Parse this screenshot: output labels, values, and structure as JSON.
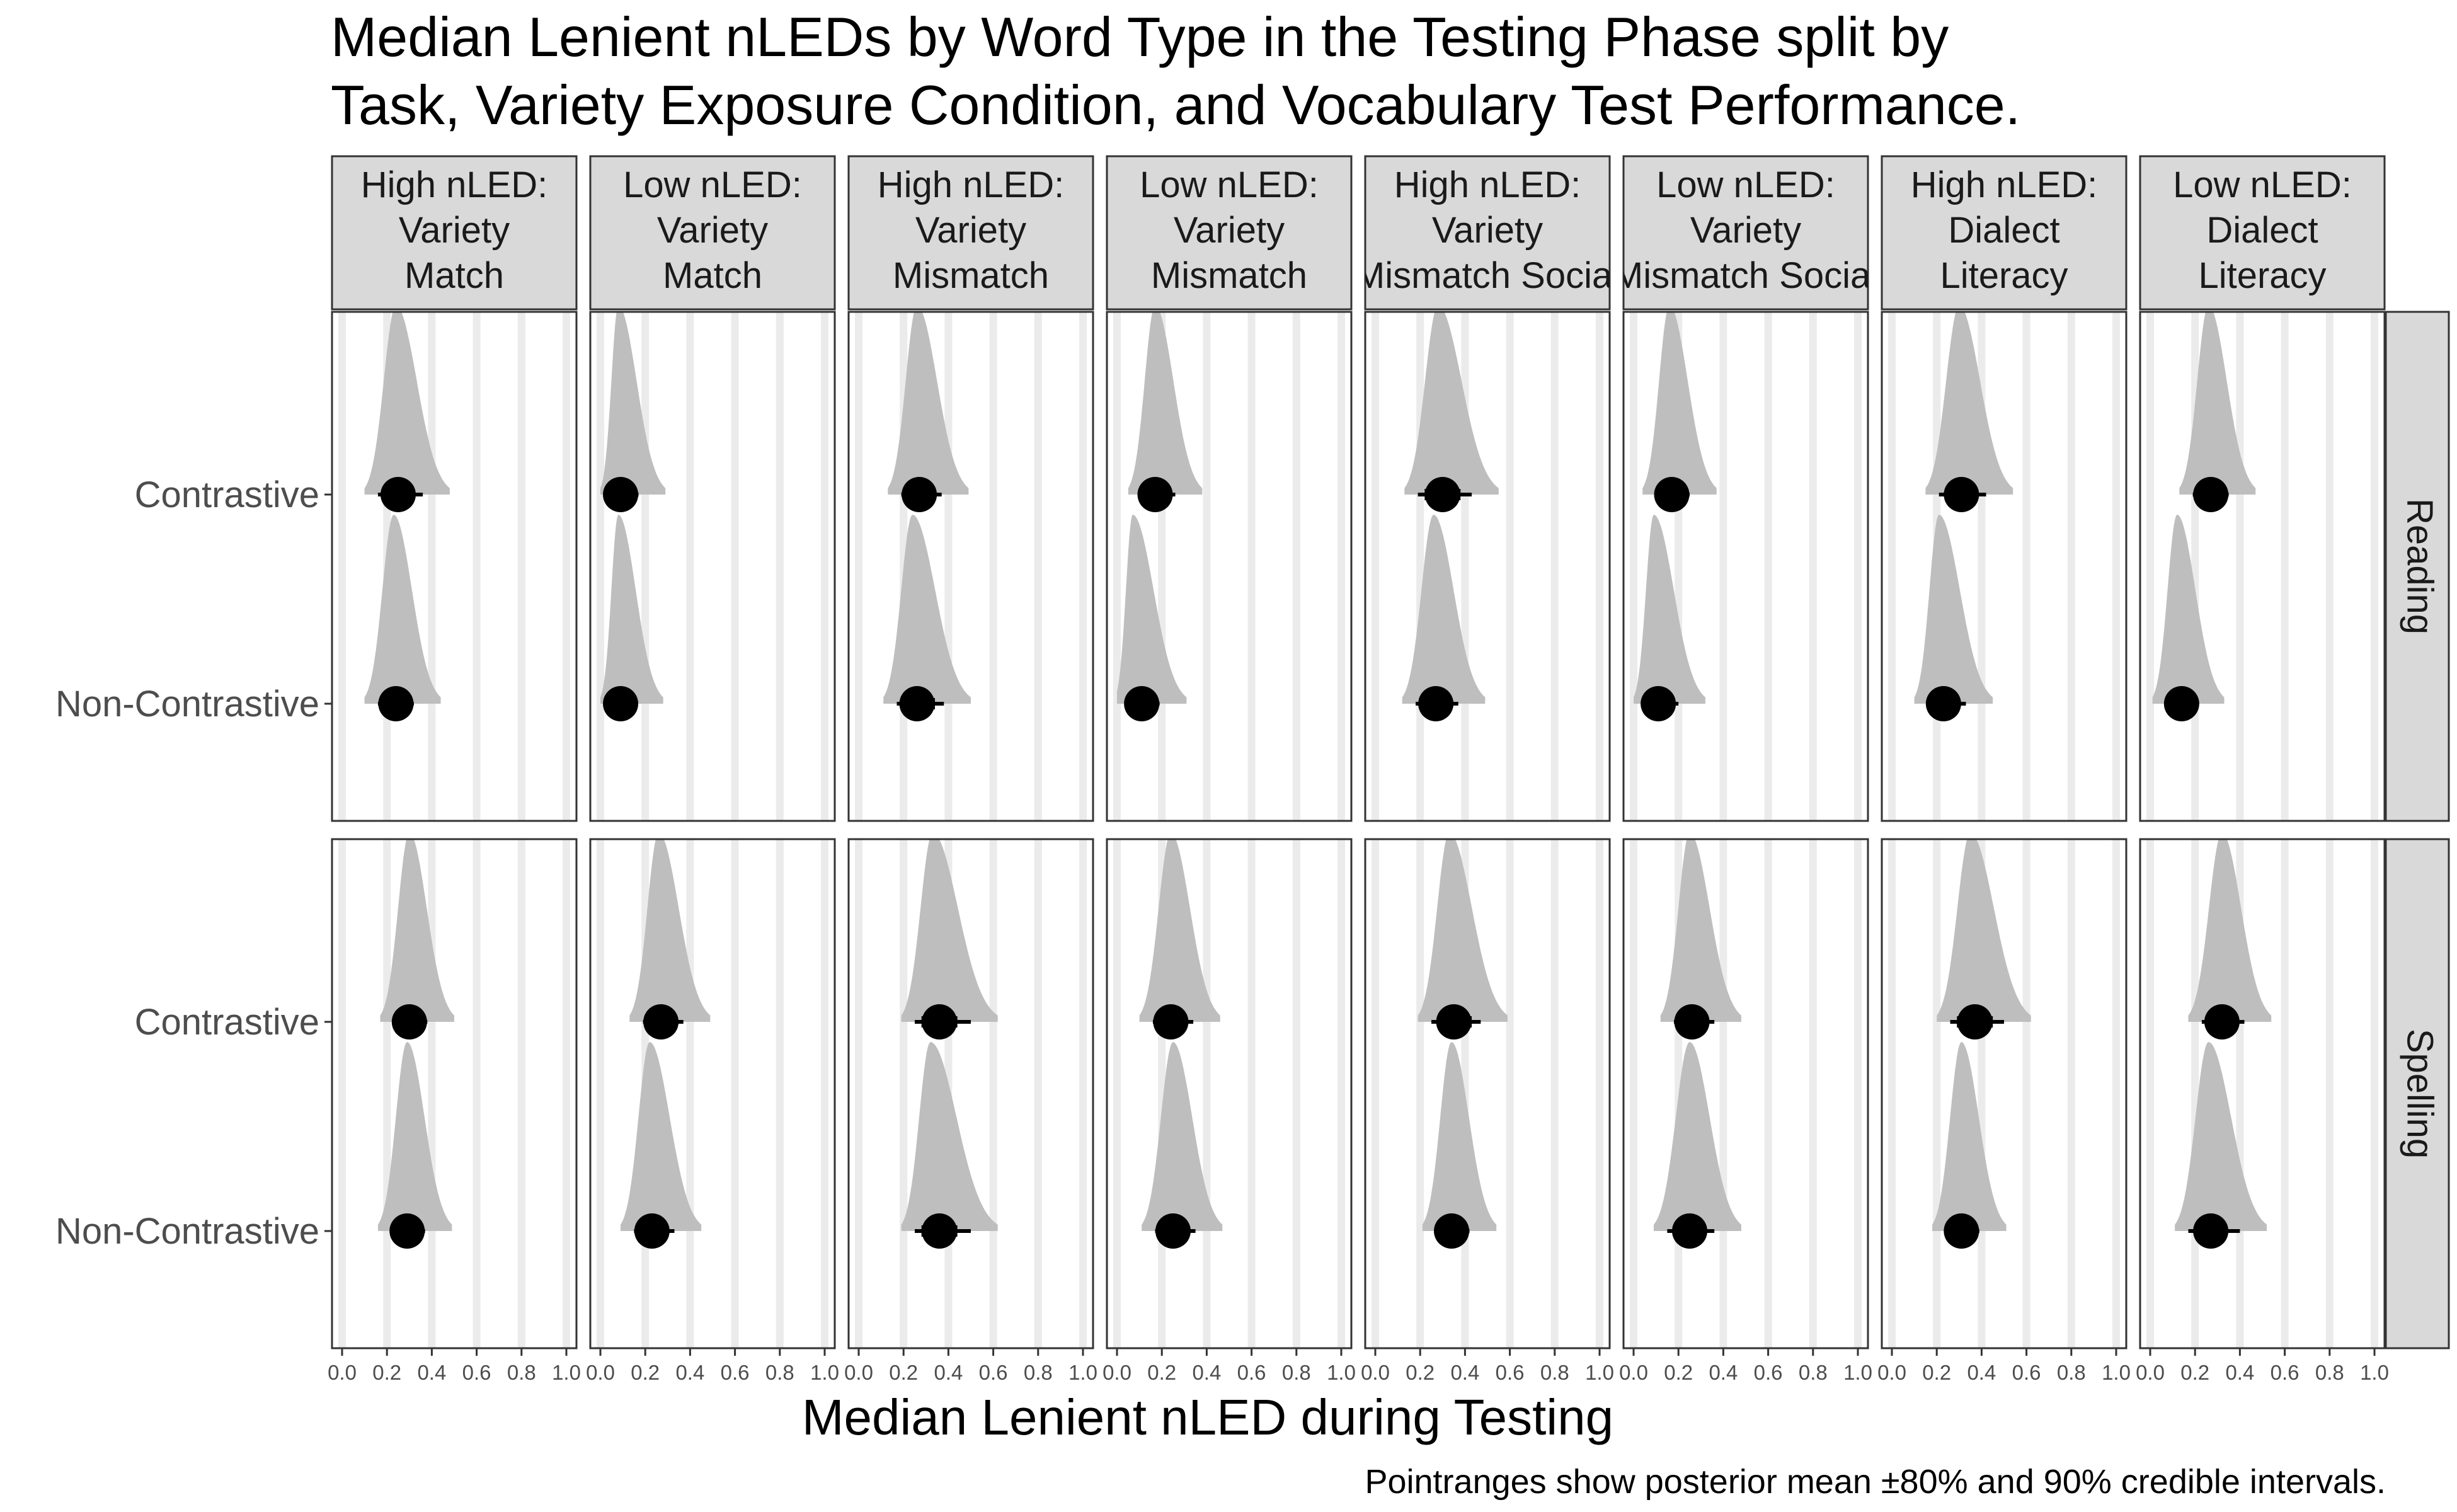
{
  "title_lines": [
    "Median Lenient nLEDs by Word Type in the Testing Phase split by",
    "Task, Variety Exposure Condition, and Vocabulary Test Performance."
  ],
  "caption": "Pointranges show posterior mean ±80% and 90% credible intervals.",
  "colors": {
    "density_fill": "#bebebe",
    "point": "#000000",
    "strip_background": "#d9d9d9",
    "panel_border": "#333333",
    "gridline": "#ebebeb"
  },
  "chart_data": {
    "type": "scatter",
    "subtype": "faceted pointrange with posterior half-eye densities",
    "xlabel": "Median Lenient nLED during Testing",
    "ylabel": "",
    "xlim": [
      0,
      1
    ],
    "x_ticks": [
      "0.0",
      "0.2",
      "0.4",
      "0.6",
      "0.8",
      "1.0"
    ],
    "grid": true,
    "legend": "none",
    "y_categories": [
      "Contrastive",
      "Non-Contrastive"
    ],
    "column_facets": [
      [
        "High nLED:",
        "Variety",
        "Match"
      ],
      [
        "Low nLED:",
        "Variety",
        "Match"
      ],
      [
        "High nLED:",
        "Variety",
        "Mismatch"
      ],
      [
        "Low nLED:",
        "Variety",
        "Mismatch"
      ],
      [
        "High nLED:",
        "Variety",
        "Mismatch Social"
      ],
      [
        "Low nLED:",
        "Variety",
        "Mismatch Social"
      ],
      [
        "High nLED:",
        "Dialect",
        "Literacy"
      ],
      [
        "Low nLED:",
        "Dialect",
        "Literacy"
      ]
    ],
    "row_facets": [
      "Reading",
      "Spelling"
    ],
    "panels": [
      {
        "row": "Reading",
        "col": 0,
        "points": [
          {
            "word_type": "Contrastive",
            "mean": 0.25,
            "ci80": [
              0.19,
              0.32
            ],
            "ci90": [
              0.16,
              0.36
            ],
            "density_peak": 0.24
          },
          {
            "word_type": "Non-Contrastive",
            "mean": 0.24,
            "ci80": [
              0.18,
              0.29
            ],
            "ci90": [
              0.16,
              0.32
            ],
            "density_peak": 0.23
          }
        ]
      },
      {
        "row": "Reading",
        "col": 1,
        "points": [
          {
            "word_type": "Contrastive",
            "mean": 0.09,
            "ci80": [
              0.05,
              0.14
            ],
            "ci90": [
              0.04,
              0.17
            ],
            "density_peak": 0.08
          },
          {
            "word_type": "Non-Contrastive",
            "mean": 0.09,
            "ci80": [
              0.05,
              0.13
            ],
            "ci90": [
              0.04,
              0.16
            ],
            "density_peak": 0.08
          }
        ]
      },
      {
        "row": "Reading",
        "col": 2,
        "points": [
          {
            "word_type": "Contrastive",
            "mean": 0.27,
            "ci80": [
              0.21,
              0.33
            ],
            "ci90": [
              0.19,
              0.37
            ],
            "density_peak": 0.26
          },
          {
            "word_type": "Non-Contrastive",
            "mean": 0.26,
            "ci80": [
              0.19,
              0.34
            ],
            "ci90": [
              0.17,
              0.38
            ],
            "density_peak": 0.24
          }
        ]
      },
      {
        "row": "Reading",
        "col": 3,
        "points": [
          {
            "word_type": "Contrastive",
            "mean": 0.17,
            "ci80": [
              0.13,
              0.23
            ],
            "ci90": [
              0.11,
              0.26
            ],
            "density_peak": 0.17
          },
          {
            "word_type": "Non-Contrastive",
            "mean": 0.11,
            "ci80": [
              0.06,
              0.16
            ],
            "ci90": [
              0.04,
              0.19
            ],
            "density_peak": 0.07
          }
        ]
      },
      {
        "row": "Reading",
        "col": 4,
        "points": [
          {
            "word_type": "Contrastive",
            "mean": 0.3,
            "ci80": [
              0.22,
              0.38
            ],
            "ci90": [
              0.19,
              0.43
            ],
            "density_peak": 0.28
          },
          {
            "word_type": "Non-Contrastive",
            "mean": 0.27,
            "ci80": [
              0.2,
              0.33
            ],
            "ci90": [
              0.18,
              0.37
            ],
            "density_peak": 0.26
          }
        ]
      },
      {
        "row": "Reading",
        "col": 5,
        "points": [
          {
            "word_type": "Contrastive",
            "mean": 0.17,
            "ci80": [
              0.12,
              0.22
            ],
            "ci90": [
              0.1,
              0.25
            ],
            "density_peak": 0.16
          },
          {
            "word_type": "Non-Contrastive",
            "mean": 0.11,
            "ci80": [
              0.07,
              0.17
            ],
            "ci90": [
              0.05,
              0.2
            ],
            "density_peak": 0.09
          }
        ]
      },
      {
        "row": "Reading",
        "col": 6,
        "points": [
          {
            "word_type": "Contrastive",
            "mean": 0.31,
            "ci80": [
              0.24,
              0.37
            ],
            "ci90": [
              0.21,
              0.42
            ],
            "density_peak": 0.3
          },
          {
            "word_type": "Non-Contrastive",
            "mean": 0.23,
            "ci80": [
              0.18,
              0.3
            ],
            "ci90": [
              0.16,
              0.33
            ],
            "density_peak": 0.21
          }
        ]
      },
      {
        "row": "Reading",
        "col": 7,
        "points": [
          {
            "word_type": "Contrastive",
            "mean": 0.27,
            "ci80": [
              0.21,
              0.32
            ],
            "ci90": [
              0.19,
              0.35
            ],
            "density_peak": 0.26
          },
          {
            "word_type": "Non-Contrastive",
            "mean": 0.14,
            "ci80": [
              0.09,
              0.18
            ],
            "ci90": [
              0.07,
              0.21
            ],
            "density_peak": 0.12
          }
        ]
      },
      {
        "row": "Spelling",
        "col": 0,
        "points": [
          {
            "word_type": "Contrastive",
            "mean": 0.3,
            "ci80": [
              0.25,
              0.35
            ],
            "ci90": [
              0.23,
              0.38
            ],
            "density_peak": 0.3
          },
          {
            "word_type": "Non-Contrastive",
            "mean": 0.29,
            "ci80": [
              0.24,
              0.34
            ],
            "ci90": [
              0.22,
              0.37
            ],
            "density_peak": 0.29
          }
        ]
      },
      {
        "row": "Spelling",
        "col": 1,
        "points": [
          {
            "word_type": "Contrastive",
            "mean": 0.27,
            "ci80": [
              0.21,
              0.33
            ],
            "ci90": [
              0.19,
              0.37
            ],
            "density_peak": 0.26
          },
          {
            "word_type": "Non-Contrastive",
            "mean": 0.23,
            "ci80": [
              0.17,
              0.29
            ],
            "ci90": [
              0.15,
              0.33
            ],
            "density_peak": 0.22
          }
        ]
      },
      {
        "row": "Spelling",
        "col": 2,
        "points": [
          {
            "word_type": "Contrastive",
            "mean": 0.36,
            "ci80": [
              0.28,
              0.44
            ],
            "ci90": [
              0.25,
              0.5
            ],
            "density_peak": 0.33
          },
          {
            "word_type": "Non-Contrastive",
            "mean": 0.36,
            "ci80": [
              0.28,
              0.44
            ],
            "ci90": [
              0.25,
              0.5
            ],
            "density_peak": 0.32
          }
        ]
      },
      {
        "row": "Spelling",
        "col": 3,
        "points": [
          {
            "word_type": "Contrastive",
            "mean": 0.24,
            "ci80": [
              0.18,
              0.3
            ],
            "ci90": [
              0.16,
              0.34
            ],
            "density_peak": 0.24
          },
          {
            "word_type": "Non-Contrastive",
            "mean": 0.25,
            "ci80": [
              0.19,
              0.31
            ],
            "ci90": [
              0.17,
              0.35
            ],
            "density_peak": 0.25
          }
        ]
      },
      {
        "row": "Spelling",
        "col": 4,
        "points": [
          {
            "word_type": "Contrastive",
            "mean": 0.35,
            "ci80": [
              0.28,
              0.43
            ],
            "ci90": [
              0.25,
              0.47
            ],
            "density_peak": 0.33
          },
          {
            "word_type": "Non-Contrastive",
            "mean": 0.34,
            "ci80": [
              0.29,
              0.39
            ],
            "ci90": [
              0.27,
              0.42
            ],
            "density_peak": 0.34
          }
        ]
      },
      {
        "row": "Spelling",
        "col": 5,
        "points": [
          {
            "word_type": "Contrastive",
            "mean": 0.26,
            "ci80": [
              0.2,
              0.32
            ],
            "ci90": [
              0.18,
              0.36
            ],
            "density_peak": 0.25
          },
          {
            "word_type": "Non-Contrastive",
            "mean": 0.25,
            "ci80": [
              0.18,
              0.32
            ],
            "ci90": [
              0.15,
              0.36
            ],
            "density_peak": 0.25
          }
        ]
      },
      {
        "row": "Spelling",
        "col": 6,
        "points": [
          {
            "word_type": "Contrastive",
            "mean": 0.37,
            "ci80": [
              0.29,
              0.45
            ],
            "ci90": [
              0.26,
              0.5
            ],
            "density_peak": 0.35
          },
          {
            "word_type": "Non-Contrastive",
            "mean": 0.31,
            "ci80": [
              0.26,
              0.36
            ],
            "ci90": [
              0.24,
              0.39
            ],
            "density_peak": 0.31
          }
        ]
      },
      {
        "row": "Spelling",
        "col": 7,
        "points": [
          {
            "word_type": "Contrastive",
            "mean": 0.32,
            "ci80": [
              0.26,
              0.38
            ],
            "ci90": [
              0.23,
              0.42
            ],
            "density_peak": 0.32
          },
          {
            "word_type": "Non-Contrastive",
            "mean": 0.27,
            "ci80": [
              0.2,
              0.34
            ],
            "ci90": [
              0.17,
              0.4
            ],
            "density_peak": 0.26
          }
        ]
      }
    ]
  }
}
